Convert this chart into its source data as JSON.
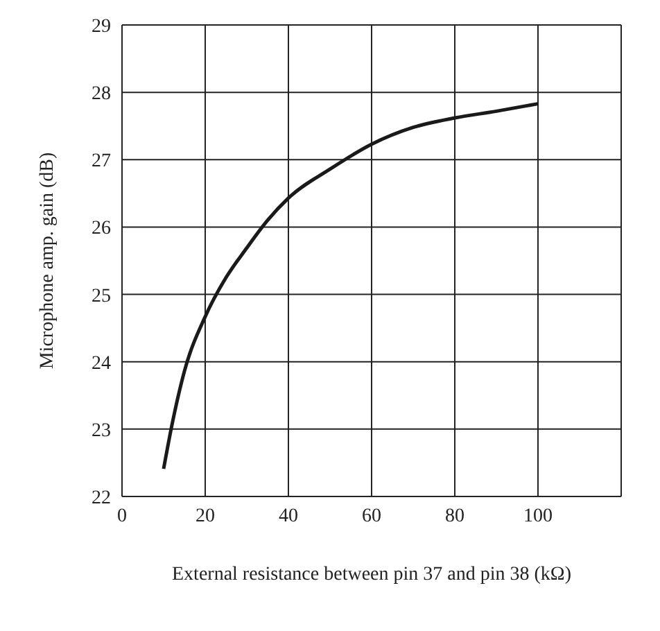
{
  "chart_data": {
    "type": "line",
    "xlabel": "External resistance between pin 37 and pin 38  (kΩ)",
    "ylabel": "Microphone amp. gain  (dB)",
    "x": [
      10,
      12,
      15,
      20,
      25,
      30,
      35,
      40,
      50,
      60,
      70,
      80,
      90,
      100
    ],
    "series": [
      {
        "color": "#1a1a1a",
        "values": [
          22.41,
          23.06,
          23.86,
          24.67,
          25.25,
          25.69,
          26.1,
          26.43,
          26.86,
          27.23,
          27.48,
          27.62,
          27.72,
          27.83
        ]
      }
    ],
    "xlim": [
      0,
      120
    ],
    "xticks": [
      0,
      20,
      40,
      60,
      80,
      100,
      {
        "value": 120,
        "label": null
      }
    ],
    "ylim": [
      22,
      29
    ],
    "yticks": [
      22,
      23,
      24,
      25,
      26,
      27,
      28,
      29
    ],
    "grid": true,
    "legend": false,
    "marker": "none",
    "line_style": "solid"
  }
}
